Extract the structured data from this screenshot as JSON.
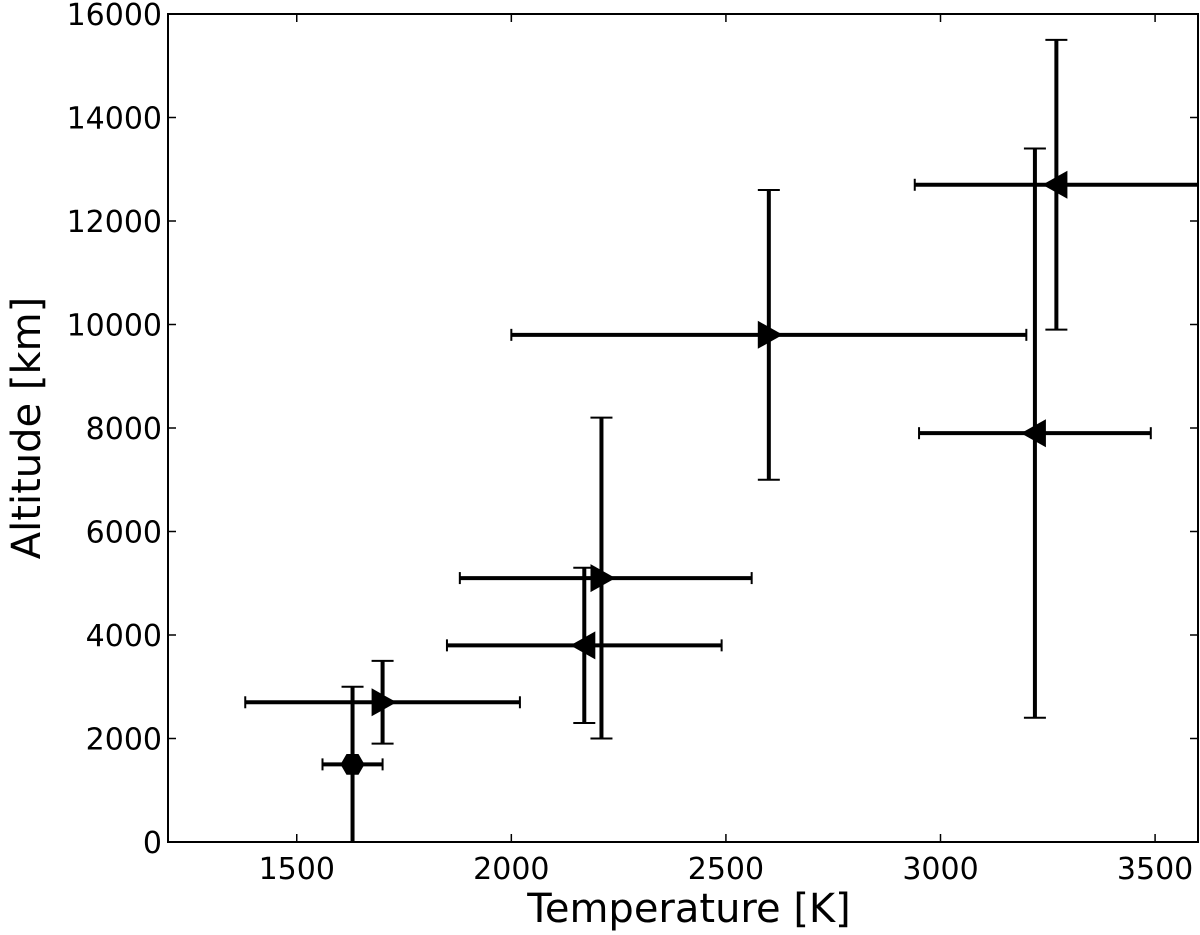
{
  "chart_data": {
    "type": "scatter",
    "title": "",
    "xlabel": "Temperature [K]",
    "ylabel": "Altitude [km]",
    "xlim": [
      1200,
      3600
    ],
    "ylim": [
      0,
      16000
    ],
    "xticks": [
      1500,
      2000,
      2500,
      3000,
      3500
    ],
    "yticks": [
      0,
      2000,
      4000,
      6000,
      8000,
      10000,
      12000,
      14000,
      16000
    ],
    "grid": false,
    "legend": "none",
    "color": "#000000",
    "points": [
      {
        "x": 1630,
        "y": 1500,
        "xerr": [
          1560,
          1700
        ],
        "yerr": [
          0,
          3000
        ],
        "marker": "hexagon"
      },
      {
        "x": 1700,
        "y": 2700,
        "xerr": [
          1380,
          2020
        ],
        "yerr": [
          1900,
          3500
        ],
        "marker": "triangle-right"
      },
      {
        "x": 2170,
        "y": 3800,
        "xerr": [
          1850,
          2490
        ],
        "yerr": [
          2300,
          5300
        ],
        "marker": "triangle-left"
      },
      {
        "x": 2210,
        "y": 5100,
        "xerr": [
          1880,
          2560
        ],
        "yerr": [
          2000,
          8200
        ],
        "marker": "triangle-right"
      },
      {
        "x": 2600,
        "y": 9800,
        "xerr": [
          2000,
          3200
        ],
        "yerr": [
          7000,
          12600
        ],
        "marker": "triangle-right"
      },
      {
        "x": 3220,
        "y": 7900,
        "xerr": [
          2950,
          3490
        ],
        "yerr": [
          2400,
          13400
        ],
        "marker": "triangle-left"
      },
      {
        "x": 3270,
        "y": 12700,
        "xerr": [
          2940,
          3600
        ],
        "yerr": [
          9900,
          15500
        ],
        "marker": "triangle-left"
      }
    ]
  }
}
